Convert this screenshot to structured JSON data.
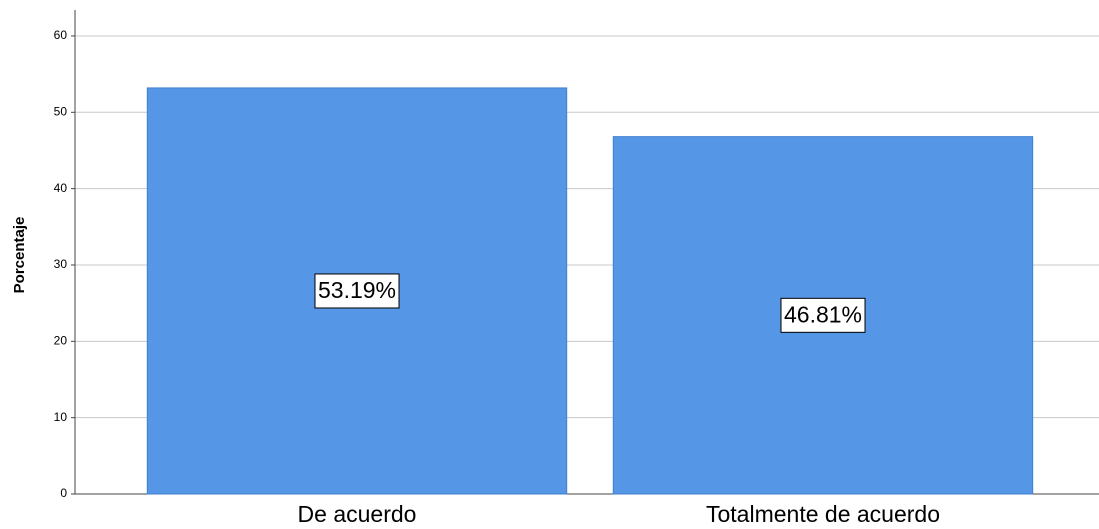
{
  "chart_data": {
    "type": "bar",
    "y_label": "Porcentaje",
    "categories": [
      "De acuerdo",
      "Totalmente de acuerdo"
    ],
    "values": [
      53.19,
      46.81
    ],
    "value_labels": [
      "53.19%",
      "46.81%"
    ],
    "color": "#5596e6",
    "ylim": [
      0,
      63.4
    ],
    "yticks": [
      0,
      10,
      20,
      30,
      40,
      50,
      60
    ],
    "grid": true
  }
}
